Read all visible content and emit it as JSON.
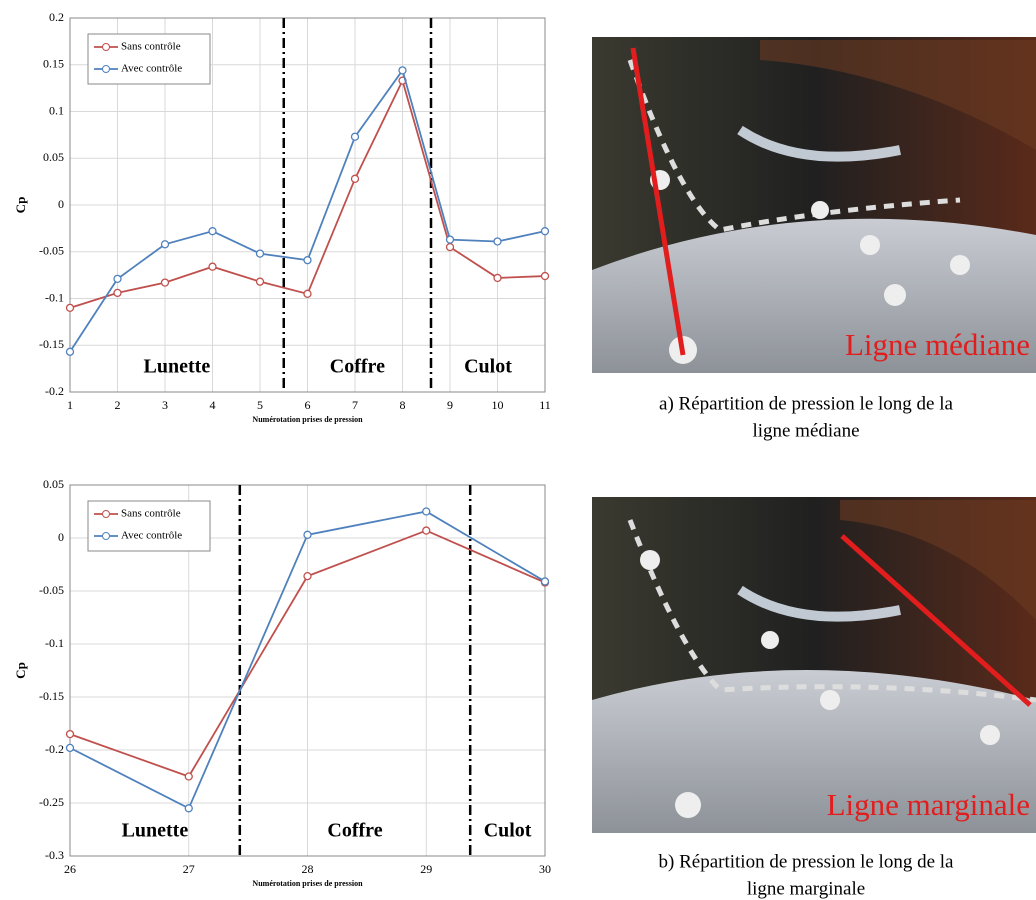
{
  "chart_data": [
    {
      "type": "line",
      "ylabel": "Cp",
      "xlabel": "Numérotation prises de pression",
      "x": [
        1,
        2,
        3,
        4,
        5,
        6,
        7,
        8,
        9,
        10,
        11
      ],
      "xlim": [
        1,
        11
      ],
      "xticks": [
        1,
        2,
        3,
        4,
        5,
        6,
        7,
        8,
        9,
        10,
        11
      ],
      "ylim": [
        -0.2,
        0.2
      ],
      "yticks": [
        -0.2,
        -0.15,
        -0.1,
        -0.05,
        0,
        0.05,
        0.1,
        0.15,
        0.2
      ],
      "grid": true,
      "legend": "upper left",
      "dividers": [
        5.5,
        8.6
      ],
      "annotations": [
        "Lunette",
        "Coffre",
        "Culot"
      ],
      "series": [
        {
          "name": "Sans contrôle",
          "color": "#c0504d",
          "values": [
            -0.11,
            -0.094,
            -0.083,
            -0.066,
            -0.082,
            -0.095,
            0.028,
            0.133,
            -0.045,
            -0.078,
            -0.076
          ]
        },
        {
          "name": "Avec contrôle",
          "color": "#4f81bd",
          "values": [
            -0.157,
            -0.079,
            -0.042,
            -0.028,
            -0.052,
            -0.059,
            0.073,
            0.144,
            -0.037,
            -0.039,
            -0.028
          ]
        }
      ]
    },
    {
      "type": "line",
      "ylabel": "Cp",
      "xlabel": "Numérotation prises de pression",
      "x": [
        26,
        27,
        28,
        29,
        30
      ],
      "xlim": [
        26,
        30
      ],
      "xticks": [
        26,
        27,
        28,
        29,
        30
      ],
      "ylim": [
        -0.3,
        0.05
      ],
      "yticks": [
        -0.3,
        -0.25,
        -0.2,
        -0.15,
        -0.1,
        -0.05,
        0,
        0.05
      ],
      "grid": true,
      "legend": "upper left",
      "dividers": [
        27.43,
        29.37
      ],
      "annotations": [
        "Lunette",
        "Coffre",
        "Culot"
      ],
      "series": [
        {
          "name": "Sans contrôle",
          "color": "#c0504d",
          "values": [
            -0.185,
            -0.225,
            -0.036,
            0.007,
            -0.042
          ]
        },
        {
          "name": "Avec contrôle",
          "color": "#4f81bd",
          "values": [
            -0.198,
            -0.255,
            0.003,
            0.025,
            -0.041
          ]
        }
      ]
    }
  ],
  "photos": [
    {
      "label": "Ligne médiane",
      "caption": [
        "a) Répartition de pression le long de la",
        "ligne médiane"
      ]
    },
    {
      "label": "Ligne marginale",
      "caption": [
        "b) Répartition de pression le long de la",
        "ligne marginale"
      ]
    }
  ]
}
